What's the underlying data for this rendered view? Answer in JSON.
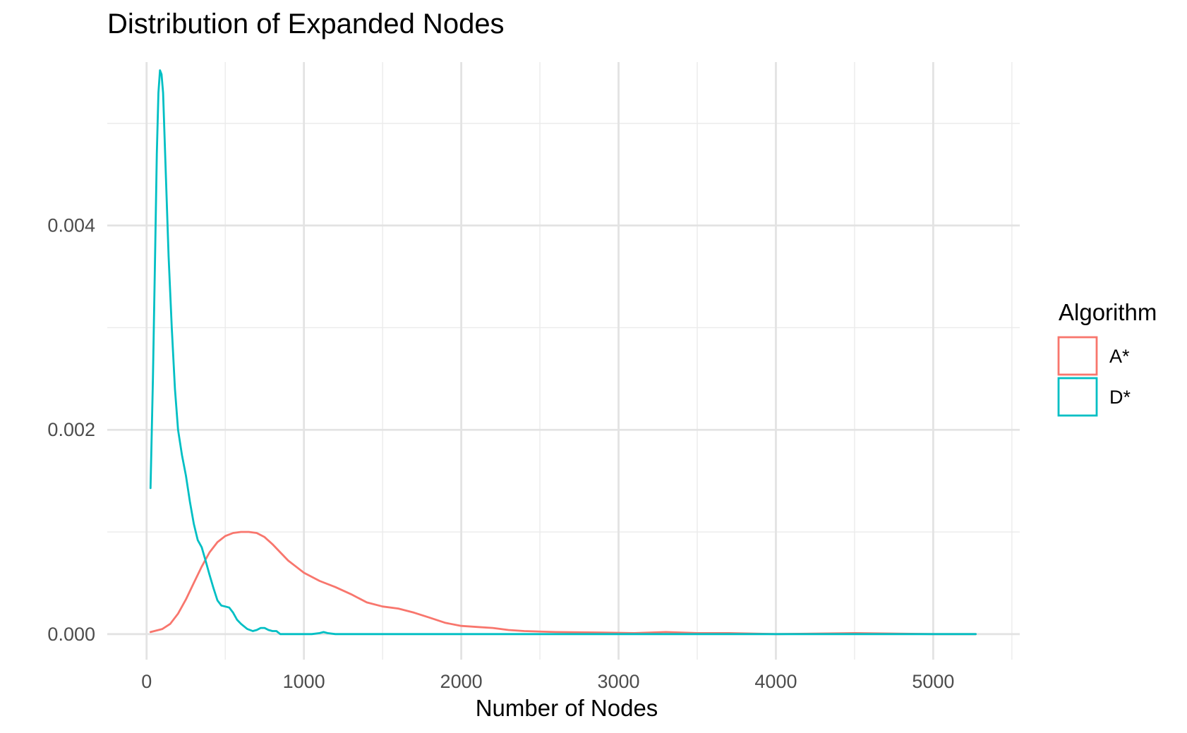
{
  "chart_data": {
    "type": "line",
    "title": "Distribution of Expanded Nodes",
    "xlabel": "Number of Nodes",
    "ylabel": "",
    "xlim": [
      -250,
      5550
    ],
    "ylim": [
      -0.00025,
      0.0056
    ],
    "x_ticks": [
      0,
      1000,
      2000,
      3000,
      4000,
      5000
    ],
    "x_tick_labels": [
      "0",
      "1000",
      "2000",
      "3000",
      "4000",
      "5000"
    ],
    "x_minor_ticks": [
      500,
      1500,
      2500,
      3500,
      4500,
      5500
    ],
    "y_ticks": [
      0,
      0.002,
      0.004
    ],
    "y_tick_labels": [
      "0.000",
      "0.002",
      "0.004"
    ],
    "y_minor_ticks": [
      0.001,
      0.003,
      0.005
    ],
    "grid": true,
    "legend": {
      "title": "Algorithm",
      "position": "right"
    },
    "series": [
      {
        "name": "A*",
        "color": "#F8766D",
        "points": [
          [
            25,
            2e-05
          ],
          [
            100,
            5e-05
          ],
          [
            150,
            0.0001
          ],
          [
            200,
            0.0002
          ],
          [
            250,
            0.00034
          ],
          [
            300,
            0.0005
          ],
          [
            350,
            0.00066
          ],
          [
            400,
            0.0008
          ],
          [
            450,
            0.0009
          ],
          [
            500,
            0.00096
          ],
          [
            550,
            0.00099
          ],
          [
            600,
            0.001
          ],
          [
            650,
            0.001
          ],
          [
            700,
            0.00099
          ],
          [
            750,
            0.00095
          ],
          [
            800,
            0.00088
          ],
          [
            850,
            0.0008
          ],
          [
            900,
            0.00072
          ],
          [
            950,
            0.00066
          ],
          [
            1000,
            0.0006
          ],
          [
            1100,
            0.00052
          ],
          [
            1200,
            0.00046
          ],
          [
            1300,
            0.00039
          ],
          [
            1400,
            0.00031
          ],
          [
            1500,
            0.00027
          ],
          [
            1600,
            0.00025
          ],
          [
            1700,
            0.00021
          ],
          [
            1800,
            0.00016
          ],
          [
            1900,
            0.00011
          ],
          [
            2000,
            8e-05
          ],
          [
            2100,
            7e-05
          ],
          [
            2200,
            6e-05
          ],
          [
            2300,
            4e-05
          ],
          [
            2400,
            3e-05
          ],
          [
            2600,
            2e-05
          ],
          [
            2900,
            1.5e-05
          ],
          [
            3100,
            1e-05
          ],
          [
            3300,
            2e-05
          ],
          [
            3500,
            1e-05
          ],
          [
            3700,
            1e-05
          ],
          [
            4000,
            0.0
          ],
          [
            4500,
            1e-05
          ],
          [
            5000,
            0.0
          ],
          [
            5270,
            0.0
          ]
        ]
      },
      {
        "name": "D*",
        "color": "#00BFC4",
        "points": [
          [
            25,
            0.00143
          ],
          [
            40,
            0.0025
          ],
          [
            55,
            0.0038
          ],
          [
            65,
            0.0047
          ],
          [
            75,
            0.0053
          ],
          [
            85,
            0.00552
          ],
          [
            95,
            0.00548
          ],
          [
            105,
            0.0053
          ],
          [
            120,
            0.0046
          ],
          [
            140,
            0.0037
          ],
          [
            160,
            0.003
          ],
          [
            180,
            0.0024
          ],
          [
            200,
            0.002
          ],
          [
            225,
            0.00175
          ],
          [
            250,
            0.00155
          ],
          [
            275,
            0.0013
          ],
          [
            300,
            0.00108
          ],
          [
            325,
            0.00092
          ],
          [
            350,
            0.00085
          ],
          [
            375,
            0.00072
          ],
          [
            400,
            0.00058
          ],
          [
            425,
            0.00045
          ],
          [
            450,
            0.00033
          ],
          [
            475,
            0.00028
          ],
          [
            500,
            0.00027
          ],
          [
            525,
            0.00026
          ],
          [
            550,
            0.00021
          ],
          [
            575,
            0.00014
          ],
          [
            600,
            0.0001
          ],
          [
            640,
            5e-05
          ],
          [
            675,
            3e-05
          ],
          [
            700,
            4e-05
          ],
          [
            725,
            6e-05
          ],
          [
            750,
            6e-05
          ],
          [
            775,
            4e-05
          ],
          [
            800,
            3e-05
          ],
          [
            825,
            3e-05
          ],
          [
            850,
            0.0
          ],
          [
            900,
            0.0
          ],
          [
            1050,
            0.0
          ],
          [
            1100,
            1e-05
          ],
          [
            1125,
            2e-05
          ],
          [
            1150,
            1e-05
          ],
          [
            1200,
            0.0
          ],
          [
            2000,
            0.0
          ],
          [
            3000,
            0.0
          ],
          [
            4000,
            0.0
          ],
          [
            5000,
            0.0
          ],
          [
            5270,
            0.0
          ]
        ]
      }
    ]
  }
}
